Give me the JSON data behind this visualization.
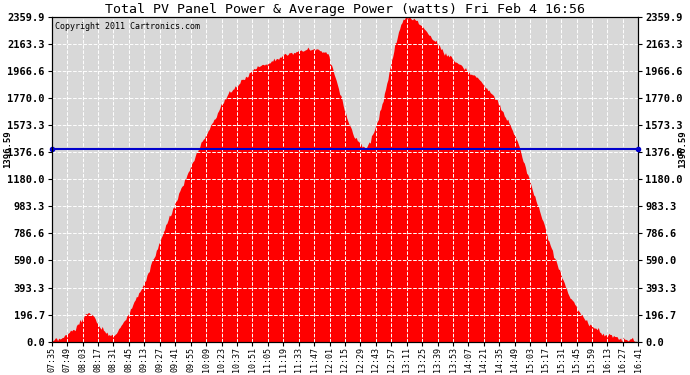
{
  "title": "Total PV Panel Power & Average Power (watts) Fri Feb 4 16:56",
  "copyright": "Copyright 2011 Cartronics.com",
  "avg_power": 1396.59,
  "y_max": 2359.9,
  "y_ticks": [
    0.0,
    196.7,
    393.3,
    590.0,
    786.6,
    983.3,
    1180.0,
    1376.6,
    1573.3,
    1770.0,
    1966.6,
    2163.3,
    2359.9
  ],
  "fill_color": "#ff0000",
  "line_color": "#0000cc",
  "bg_color": "#ffffff",
  "plot_bg_color": "#d8d8d8",
  "grid_color": "#ffffff",
  "x_labels": [
    "07:35",
    "07:49",
    "08:03",
    "08:17",
    "08:31",
    "08:45",
    "09:13",
    "09:27",
    "09:41",
    "09:55",
    "10:09",
    "10:23",
    "10:37",
    "10:51",
    "11:05",
    "11:19",
    "11:33",
    "11:47",
    "12:01",
    "12:15",
    "12:29",
    "12:43",
    "12:57",
    "13:11",
    "13:25",
    "13:39",
    "13:53",
    "14:07",
    "14:21",
    "14:35",
    "14:49",
    "15:03",
    "15:17",
    "15:31",
    "15:45",
    "15:59",
    "16:13",
    "16:27",
    "16:41"
  ],
  "avg_label": "1396.59",
  "curve_x": [
    0.0,
    0.02,
    0.04,
    0.055,
    0.065,
    0.07,
    0.075,
    0.085,
    0.095,
    0.1,
    0.11,
    0.115,
    0.13,
    0.16,
    0.2,
    0.25,
    0.3,
    0.35,
    0.38,
    0.41,
    0.43,
    0.45,
    0.47,
    0.485,
    0.495,
    0.505,
    0.515,
    0.525,
    0.535,
    0.545,
    0.555,
    0.565,
    0.575,
    0.585,
    0.595,
    0.6,
    0.61,
    0.62,
    0.63,
    0.65,
    0.67,
    0.7,
    0.73,
    0.76,
    0.79,
    0.82,
    0.85,
    0.88,
    0.91,
    0.94,
    0.97,
    1.0
  ],
  "curve_y": [
    0,
    30,
    100,
    180,
    220,
    190,
    150,
    100,
    60,
    50,
    55,
    100,
    200,
    450,
    900,
    1400,
    1800,
    2000,
    2050,
    2100,
    2120,
    2130,
    2100,
    1900,
    1750,
    1600,
    1500,
    1450,
    1400,
    1480,
    1600,
    1750,
    1950,
    2150,
    2300,
    2350,
    2360,
    2340,
    2300,
    2200,
    2100,
    2000,
    1900,
    1750,
    1500,
    1100,
    700,
    350,
    150,
    60,
    20,
    5
  ]
}
